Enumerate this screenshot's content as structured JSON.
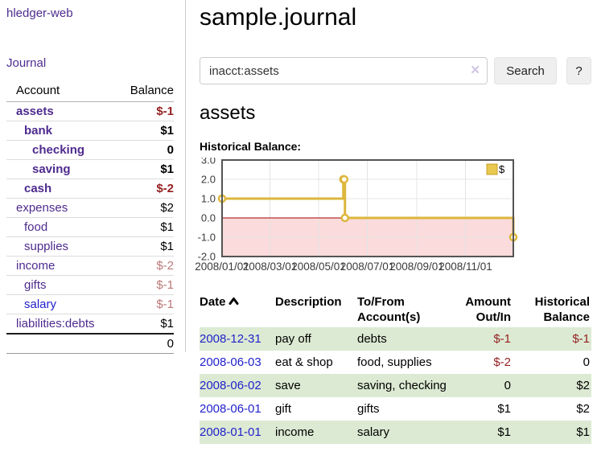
{
  "app": {
    "title": "hledger-web"
  },
  "sidebar": {
    "journal_link": "Journal",
    "accounts_header": {
      "account": "Account",
      "balance": "Balance"
    },
    "accounts": [
      {
        "name": "assets",
        "depth": 0,
        "bold": true,
        "balance": "$-1",
        "neg": true
      },
      {
        "name": "bank",
        "depth": 1,
        "bold": true,
        "balance": "$1"
      },
      {
        "name": "checking",
        "depth": 2,
        "bold": true,
        "balance": "0"
      },
      {
        "name": "saving",
        "depth": 2,
        "bold": true,
        "balance": "$1"
      },
      {
        "name": "cash",
        "depth": 1,
        "bold": true,
        "balance": "$-2",
        "neg": true
      },
      {
        "name": "expenses",
        "depth": 0,
        "balance": "$2"
      },
      {
        "name": "food",
        "depth": 1,
        "balance": "$1"
      },
      {
        "name": "supplies",
        "depth": 1,
        "balance": "$1"
      },
      {
        "name": "income",
        "depth": 0,
        "balance": "$-2",
        "neg": true
      },
      {
        "name": "gifts",
        "depth": 1,
        "balance": "$-1",
        "neg": true
      },
      {
        "name": "salary",
        "depth": 1,
        "balance": "$-1",
        "neg": true,
        "unvisited": true
      },
      {
        "name": "liabilities:debts",
        "depth": 0,
        "balance": "$1"
      }
    ],
    "total": "0"
  },
  "header": {
    "title": "sample.journal"
  },
  "search": {
    "value": "inacct:assets",
    "clear_icon": "✕",
    "button": "Search",
    "help": "?"
  },
  "account_page": {
    "title": "assets",
    "chart_label": "Historical Balance:"
  },
  "chart_data": {
    "type": "line",
    "step": true,
    "title": "Historical Balance",
    "series": [
      {
        "name": "$",
        "x": [
          "2008-01-01",
          "2008-06-01",
          "2008-06-02",
          "2008-06-03",
          "2008-12-31"
        ],
        "y": [
          1,
          2,
          2,
          0,
          -1
        ],
        "color": "#ddb63c"
      }
    ],
    "xlim": [
      "2008-01-01",
      "2008-12-31"
    ],
    "ylim": [
      -2,
      3
    ],
    "yticks": [
      3.0,
      2.0,
      1.0,
      0.0,
      -1.0,
      -2.0
    ],
    "xticks": [
      {
        "date": "2008-01-01",
        "label": "2008/01/01"
      },
      {
        "date": "2008-03-01",
        "label": "2008/03/01"
      },
      {
        "date": "2008-05-01",
        "label": "2008/05/01"
      },
      {
        "date": "2008-07-01",
        "label": "2008/07/01"
      },
      {
        "date": "2008-09-01",
        "label": "2008/09/01"
      },
      {
        "date": "2008-11-01",
        "label": "2008/11/01"
      }
    ],
    "legend": {
      "label": "$",
      "position": "top-right",
      "swatch_color": "#e9c94f"
    },
    "grid": true,
    "negative_region_color": "#fbdbdb",
    "zero_line_color": "#a00000"
  },
  "register": {
    "headers": {
      "date": "Date",
      "description": "Description",
      "accounts": "To/From Account(s)",
      "amount": "Amount Out/In",
      "balance": "Historical Balance"
    },
    "rows": [
      {
        "date": "2008-12-31",
        "description": "pay off",
        "accounts": "debts",
        "amount": "$-1",
        "amount_neg": true,
        "balance": "$-1",
        "balance_neg": true
      },
      {
        "date": "2008-06-03",
        "description": "eat & shop",
        "accounts": "food, supplies",
        "amount": "$-2",
        "amount_neg": true,
        "balance": "0"
      },
      {
        "date": "2008-06-02",
        "description": "save",
        "accounts": "saving, checking",
        "amount": "0",
        "balance": "$2"
      },
      {
        "date": "2008-06-01",
        "description": "gift",
        "accounts": "gifts",
        "amount": "$1",
        "balance": "$2"
      },
      {
        "date": "2008-01-01",
        "description": "income",
        "accounts": "salary",
        "amount": "$1",
        "balance": "$1"
      }
    ]
  }
}
